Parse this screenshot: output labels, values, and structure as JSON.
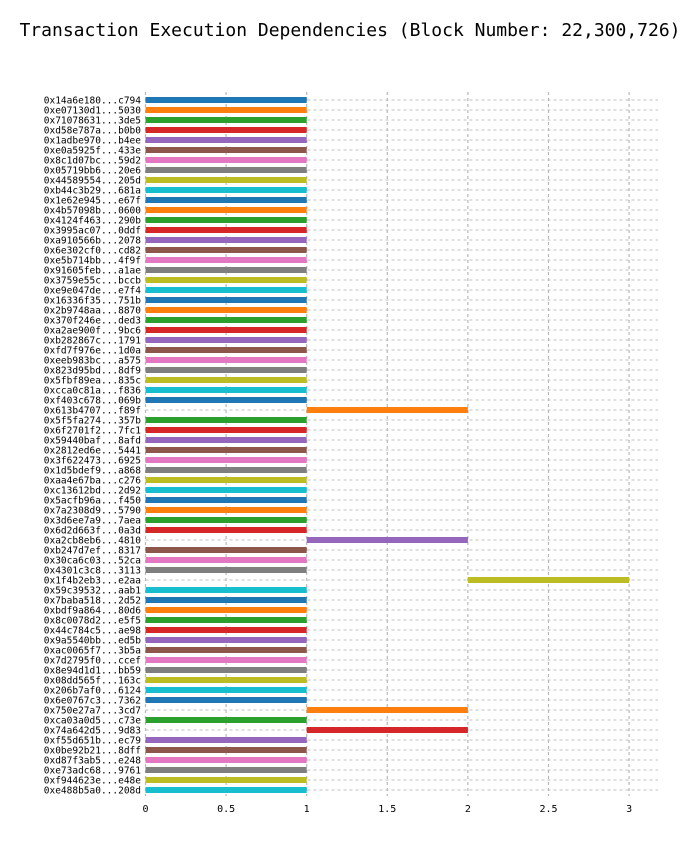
{
  "chart_data": {
    "type": "bar",
    "orientation": "horizontal",
    "title": "Transaction Execution Dependencies (Block Number: 22,300,726)",
    "xlabel": "",
    "ylabel": "",
    "xlim": [
      0,
      3.1
    ],
    "xticks": [
      "0",
      "0.5",
      "1",
      "1.5",
      "2",
      "2.5",
      "3"
    ],
    "grid": true,
    "palette": [
      "#1f77b4",
      "#ff7f0e",
      "#2ca02c",
      "#d62728",
      "#9467bd",
      "#8c564b",
      "#e377c2",
      "#7f7f7f",
      "#bcbd22",
      "#17becf"
    ],
    "bars": [
      {
        "label": "0x14a6e180...c794",
        "start": 0,
        "end": 1
      },
      {
        "label": "0xe07130d1...5030",
        "start": 0,
        "end": 1
      },
      {
        "label": "0x71078631...3de5",
        "start": 0,
        "end": 1
      },
      {
        "label": "0xd58e787a...b0b0",
        "start": 0,
        "end": 1
      },
      {
        "label": "0x1adbe970...b4ee",
        "start": 0,
        "end": 1
      },
      {
        "label": "0xe0a5925f...433e",
        "start": 0,
        "end": 1
      },
      {
        "label": "0x8c1d07bc...59d2",
        "start": 0,
        "end": 1
      },
      {
        "label": "0x05719bb6...20e6",
        "start": 0,
        "end": 1
      },
      {
        "label": "0x44589554...205d",
        "start": 0,
        "end": 1
      },
      {
        "label": "0xb44c3b29...681a",
        "start": 0,
        "end": 1
      },
      {
        "label": "0x1e62e945...e67f",
        "start": 0,
        "end": 1
      },
      {
        "label": "0x4b57098b...0600",
        "start": 0,
        "end": 1
      },
      {
        "label": "0x4124f463...290b",
        "start": 0,
        "end": 1
      },
      {
        "label": "0x3995ac07...0ddf",
        "start": 0,
        "end": 1
      },
      {
        "label": "0xa910566b...2078",
        "start": 0,
        "end": 1
      },
      {
        "label": "0x6e302cf0...cd82",
        "start": 0,
        "end": 1
      },
      {
        "label": "0xe5b714bb...4f9f",
        "start": 0,
        "end": 1
      },
      {
        "label": "0x91605feb...a1ae",
        "start": 0,
        "end": 1
      },
      {
        "label": "0x3759e55c...bccb",
        "start": 0,
        "end": 1
      },
      {
        "label": "0xe9e047de...e7f4",
        "start": 0,
        "end": 1
      },
      {
        "label": "0x16336f35...751b",
        "start": 0,
        "end": 1
      },
      {
        "label": "0x2b9748aa...8870",
        "start": 0,
        "end": 1
      },
      {
        "label": "0x370f246e...ded3",
        "start": 0,
        "end": 1
      },
      {
        "label": "0xa2ae900f...9bc6",
        "start": 0,
        "end": 1
      },
      {
        "label": "0xb282867c...1791",
        "start": 0,
        "end": 1
      },
      {
        "label": "0xfd7f976e...1d0a",
        "start": 0,
        "end": 1
      },
      {
        "label": "0xeeb983bc...a575",
        "start": 0,
        "end": 1
      },
      {
        "label": "0x823d95bd...8df9",
        "start": 0,
        "end": 1
      },
      {
        "label": "0x5fbf89ea...835c",
        "start": 0,
        "end": 1
      },
      {
        "label": "0xcca0c81a...f836",
        "start": 0,
        "end": 1
      },
      {
        "label": "0xf403c678...069b",
        "start": 0,
        "end": 1
      },
      {
        "label": "0x613b4707...f89f",
        "start": 1,
        "end": 2
      },
      {
        "label": "0x5f5fa274...357b",
        "start": 0,
        "end": 1
      },
      {
        "label": "0x6f2701f2...7fc1",
        "start": 0,
        "end": 1
      },
      {
        "label": "0x59440baf...8afd",
        "start": 0,
        "end": 1
      },
      {
        "label": "0x2812ed6e...5441",
        "start": 0,
        "end": 1
      },
      {
        "label": "0x3f622473...6925",
        "start": 0,
        "end": 1
      },
      {
        "label": "0x1d5bdef9...a868",
        "start": 0,
        "end": 1
      },
      {
        "label": "0xaa4e67ba...c276",
        "start": 0,
        "end": 1
      },
      {
        "label": "0xc13612bd...2d92",
        "start": 0,
        "end": 1
      },
      {
        "label": "0x5acfb96a...f450",
        "start": 0,
        "end": 1
      },
      {
        "label": "0x7a2308d9...5790",
        "start": 0,
        "end": 1
      },
      {
        "label": "0x3d6ee7a9...7aea",
        "start": 0,
        "end": 1
      },
      {
        "label": "0x6d2d663f...0a3d",
        "start": 0,
        "end": 1
      },
      {
        "label": "0xa2cb8eb6...4810",
        "start": 1,
        "end": 2
      },
      {
        "label": "0xb247d7ef...8317",
        "start": 0,
        "end": 1
      },
      {
        "label": "0x30ca6c03...52ca",
        "start": 0,
        "end": 1
      },
      {
        "label": "0x4301c3c8...3113",
        "start": 0,
        "end": 1
      },
      {
        "label": "0x1f4b2eb3...e2aa",
        "start": 2,
        "end": 3
      },
      {
        "label": "0x59c39532...aab1",
        "start": 0,
        "end": 1
      },
      {
        "label": "0x7baba518...2d52",
        "start": 0,
        "end": 1
      },
      {
        "label": "0xbdf9a864...80d6",
        "start": 0,
        "end": 1
      },
      {
        "label": "0x8c0078d2...e5f5",
        "start": 0,
        "end": 1
      },
      {
        "label": "0x44c784c5...ae98",
        "start": 0,
        "end": 1
      },
      {
        "label": "0x9a5540bb...ed5b",
        "start": 0,
        "end": 1
      },
      {
        "label": "0xac0065f7...3b5a",
        "start": 0,
        "end": 1
      },
      {
        "label": "0x7d2795f0...ccef",
        "start": 0,
        "end": 1
      },
      {
        "label": "0x8e94d1d1...bb59",
        "start": 0,
        "end": 1
      },
      {
        "label": "0x08dd565f...163c",
        "start": 0,
        "end": 1
      },
      {
        "label": "0x206b7af0...6124",
        "start": 0,
        "end": 1
      },
      {
        "label": "0x6e0767c3...7362",
        "start": 0,
        "end": 1
      },
      {
        "label": "0x750e27a7...3cd7",
        "start": 1,
        "end": 2
      },
      {
        "label": "0xca03a0d5...c73e",
        "start": 0,
        "end": 1
      },
      {
        "label": "0x74a642d5...9d83",
        "start": 1,
        "end": 2
      },
      {
        "label": "0xf55d651b...ec79",
        "start": 0,
        "end": 1
      },
      {
        "label": "0x0be92b21...8dff",
        "start": 0,
        "end": 1
      },
      {
        "label": "0xd87f3ab5...e248",
        "start": 0,
        "end": 1
      },
      {
        "label": "0xe73adc68...9761",
        "start": 0,
        "end": 1
      },
      {
        "label": "0xf944623e...e48e",
        "start": 0,
        "end": 1
      },
      {
        "label": "0xe488b5a0...208d",
        "start": 0,
        "end": 1
      }
    ]
  }
}
